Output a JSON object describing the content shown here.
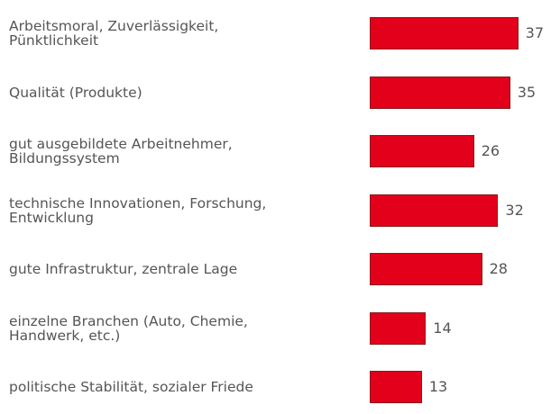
{
  "chart_data": {
    "type": "bar",
    "orientation": "horizontal",
    "categories": [
      "Arbeitsmoral, Zuverlässigkeit, Pünktlichkeit",
      "Qualität (Produkte)",
      "gut ausgebildete Arbeitnehmer, Bildungssystem",
      "technische Innovationen, Forschung, Entwicklung",
      "gute Infrastruktur, zentrale Lage",
      "einzelne Branchen (Auto, Chemie, Handwerk, etc.)",
      "politische Stabilität, sozialer Friede"
    ],
    "values": [
      37,
      35,
      26,
      32,
      28,
      14,
      13
    ],
    "color": "#e2001a"
  }
}
